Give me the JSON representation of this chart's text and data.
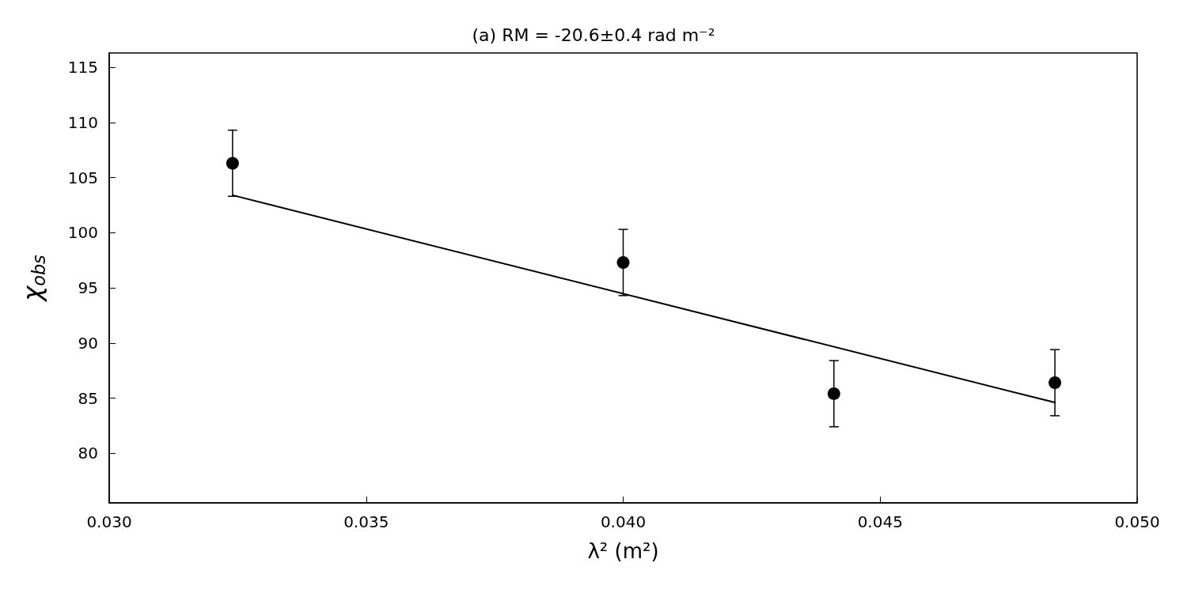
{
  "chart_data": {
    "type": "scatter",
    "title": "(a) RM = -20.6±0.4 rad m⁻²",
    "xlabel": "λ² (m²)",
    "ylabel": "χ$_{obs}$",
    "xlim": [
      0.03,
      0.05
    ],
    "ylim": [
      75.5,
      116.3
    ],
    "xticks": [
      {
        "value": 0.03,
        "label": "0.030"
      },
      {
        "value": 0.035,
        "label": "0.035"
      },
      {
        "value": 0.04,
        "label": "0.040"
      },
      {
        "value": 0.045,
        "label": "0.045"
      },
      {
        "value": 0.05,
        "label": "0.050"
      }
    ],
    "yticks": [
      80,
      85,
      90,
      95,
      100,
      105,
      110,
      115
    ],
    "grid": false,
    "series": [
      {
        "color": "#000000",
        "marker": "circle",
        "x": [
          0.0324,
          0.04,
          0.0441,
          0.0484
        ],
        "values": [
          106.3,
          97.3,
          85.4,
          86.4
        ],
        "errors": [
          3,
          3,
          3,
          3
        ]
      },
      {
        "type": "line",
        "color": "#000000",
        "marker": "none",
        "line_style": "solid",
        "x": [
          0.0324,
          0.0484
        ],
        "values": [
          103.4,
          84.6
        ]
      }
    ]
  }
}
